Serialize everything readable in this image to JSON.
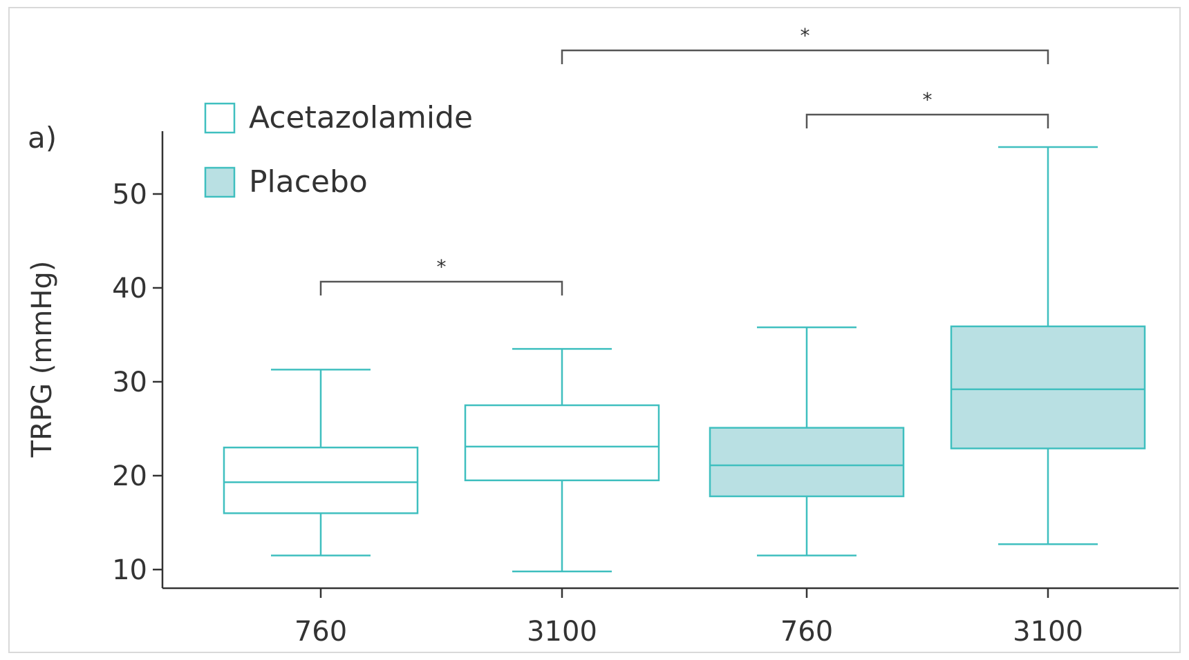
{
  "panel_label": "a)",
  "chart_data": {
    "type": "box",
    "ylabel": "TRPG (mmHg)",
    "xlabel": "",
    "ylim": [
      8,
      57
    ],
    "yticks": [
      10,
      20,
      30,
      40,
      50
    ],
    "legend": {
      "placement": "top-left",
      "entries": [
        {
          "name": "Acetazolamide",
          "fill": "#ffffff"
        },
        {
          "name": "Placebo",
          "fill": "#b9e0e3"
        }
      ]
    },
    "colors": {
      "stroke": "#3fbfbf",
      "placebo_fill": "#b9e0e3",
      "axis": "#333333"
    },
    "boxes": [
      {
        "category": "760",
        "group": "Acetazolamide",
        "min": 11.5,
        "q1": 16.0,
        "median": 19.3,
        "q3": 23.0,
        "max": 31.3
      },
      {
        "category": "3100",
        "group": "Acetazolamide",
        "min": 9.8,
        "q1": 19.5,
        "median": 23.1,
        "q3": 27.5,
        "max": 33.5
      },
      {
        "category": "760",
        "group": "Placebo",
        "min": 11.5,
        "q1": 17.8,
        "median": 21.1,
        "q3": 25.1,
        "max": 35.8
      },
      {
        "category": "3100",
        "group": "Placebo",
        "min": 12.7,
        "q1": 22.9,
        "median": 29.2,
        "q3": 35.9,
        "max": 55.0
      }
    ],
    "significance": [
      {
        "from": 0,
        "to": 1,
        "label": "*"
      },
      {
        "from": 2,
        "to": 3,
        "label": "*"
      },
      {
        "from": 1,
        "to": 3,
        "label": "*"
      }
    ]
  }
}
